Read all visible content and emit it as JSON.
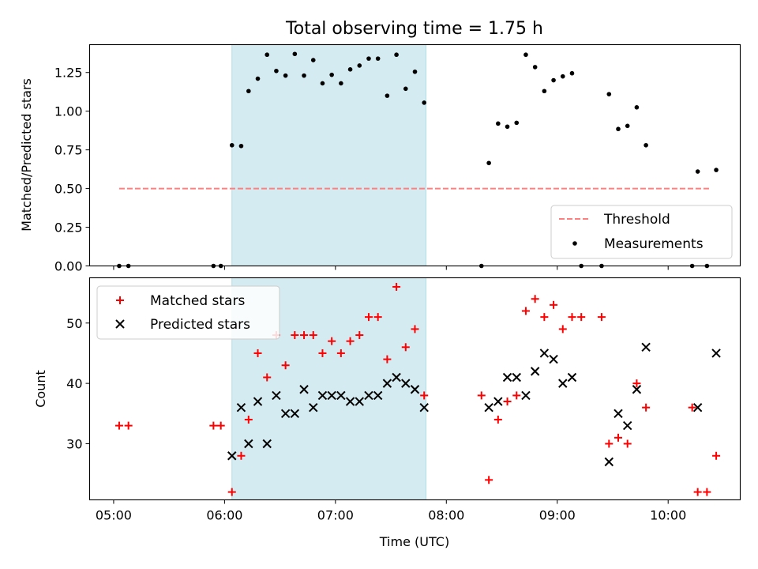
{
  "chart_data": [
    {
      "type": "scatter",
      "title": "Total observing time = 1.75 h",
      "xlabel": "",
      "ylabel": "Matched/Predicted stars",
      "ylim": [
        0,
        1.43
      ],
      "yticks": [
        0.0,
        0.25,
        0.5,
        0.75,
        1.0,
        1.25
      ],
      "ytick_labels": [
        "0.00",
        "0.25",
        "0.50",
        "0.75",
        "1.00",
        "1.25"
      ],
      "legend_position": "bottom-right",
      "shaded_interval": [
        "06:04",
        "07:49"
      ],
      "shade_color": "#d4ebf1",
      "threshold": {
        "name": "Threshold",
        "value": 0.5,
        "x_range": [
          "05:03",
          "10:23"
        ],
        "color": "#ff7f7f"
      },
      "series": [
        {
          "name": "Measurements",
          "marker": "dot",
          "color": "#000000",
          "points": [
            [
              "05:03",
              0.0
            ],
            [
              "05:08",
              0.0
            ],
            [
              "05:54",
              0.0
            ],
            [
              "05:58",
              0.0
            ],
            [
              "06:04",
              0.78
            ],
            [
              "06:09",
              0.775
            ],
            [
              "06:13",
              1.13
            ],
            [
              "06:18",
              1.21
            ],
            [
              "06:23",
              1.365
            ],
            [
              "06:28",
              1.26
            ],
            [
              "06:33",
              1.23
            ],
            [
              "06:38",
              1.37
            ],
            [
              "06:43",
              1.23
            ],
            [
              "06:48",
              1.33
            ],
            [
              "06:53",
              1.18
            ],
            [
              "06:58",
              1.235
            ],
            [
              "07:03",
              1.18
            ],
            [
              "07:08",
              1.27
            ],
            [
              "07:13",
              1.295
            ],
            [
              "07:18",
              1.34
            ],
            [
              "07:23",
              1.34
            ],
            [
              "07:28",
              1.1
            ],
            [
              "07:33",
              1.365
            ],
            [
              "07:38",
              1.145
            ],
            [
              "07:43",
              1.255
            ],
            [
              "07:48",
              1.055
            ],
            [
              "08:19",
              0.0
            ],
            [
              "08:23",
              0.665
            ],
            [
              "08:28",
              0.92
            ],
            [
              "08:33",
              0.9
            ],
            [
              "08:38",
              0.925
            ],
            [
              "08:43",
              1.365
            ],
            [
              "08:48",
              1.285
            ],
            [
              "08:53",
              1.13
            ],
            [
              "08:58",
              1.2
            ],
            [
              "09:03",
              1.225
            ],
            [
              "09:08",
              1.245
            ],
            [
              "09:13",
              0.0
            ],
            [
              "09:24",
              0.0
            ],
            [
              "09:28",
              1.11
            ],
            [
              "09:33",
              0.885
            ],
            [
              "09:38",
              0.905
            ],
            [
              "09:43",
              1.025
            ],
            [
              "09:48",
              0.78
            ],
            [
              "10:13",
              0.0
            ],
            [
              "10:16",
              0.61
            ],
            [
              "10:21",
              0.0
            ],
            [
              "10:26",
              0.62
            ]
          ]
        }
      ]
    },
    {
      "type": "scatter",
      "title": "",
      "xlabel": "Time (UTC)",
      "ylabel": "Count",
      "ylim": [
        20.7,
        57.5
      ],
      "yticks": [
        30,
        40,
        50
      ],
      "ytick_labels": [
        "30",
        "40",
        "50"
      ],
      "xlim": [
        "04:47",
        "10:39"
      ],
      "xticks": [
        "05:00",
        "06:00",
        "07:00",
        "08:00",
        "09:00",
        "10:00"
      ],
      "xtick_labels": [
        "05:00",
        "06:00",
        "07:00",
        "08:00",
        "09:00",
        "10:00"
      ],
      "legend_position": "top-left",
      "shaded_interval": [
        "06:04",
        "07:49"
      ],
      "series": [
        {
          "name": "Matched stars",
          "marker": "plus",
          "color": "#ff0000",
          "points": [
            [
              "05:03",
              33
            ],
            [
              "05:08",
              33
            ],
            [
              "05:54",
              33
            ],
            [
              "05:58",
              33
            ],
            [
              "06:04",
              22
            ],
            [
              "06:09",
              28
            ],
            [
              "06:13",
              34
            ],
            [
              "06:18",
              45
            ],
            [
              "06:23",
              41
            ],
            [
              "06:28",
              48
            ],
            [
              "06:33",
              43
            ],
            [
              "06:38",
              48
            ],
            [
              "06:43",
              48
            ],
            [
              "06:48",
              48
            ],
            [
              "06:53",
              45
            ],
            [
              "06:58",
              47
            ],
            [
              "07:03",
              45
            ],
            [
              "07:08",
              47
            ],
            [
              "07:13",
              48
            ],
            [
              "07:18",
              51
            ],
            [
              "07:23",
              51
            ],
            [
              "07:28",
              44
            ],
            [
              "07:33",
              56
            ],
            [
              "07:38",
              46
            ],
            [
              "07:43",
              49
            ],
            [
              "07:48",
              38
            ],
            [
              "08:19",
              38
            ],
            [
              "08:23",
              24
            ],
            [
              "08:28",
              34
            ],
            [
              "08:33",
              37
            ],
            [
              "08:38",
              38
            ],
            [
              "08:43",
              52
            ],
            [
              "08:48",
              54
            ],
            [
              "08:53",
              51
            ],
            [
              "08:58",
              53
            ],
            [
              "09:03",
              49
            ],
            [
              "09:08",
              51
            ],
            [
              "09:13",
              51
            ],
            [
              "09:24",
              51
            ],
            [
              "09:28",
              30
            ],
            [
              "09:33",
              31
            ],
            [
              "09:38",
              30
            ],
            [
              "09:43",
              40
            ],
            [
              "09:48",
              36
            ],
            [
              "10:13",
              36
            ],
            [
              "10:16",
              22
            ],
            [
              "10:21",
              22
            ],
            [
              "10:26",
              28
            ]
          ]
        },
        {
          "name": "Predicted stars",
          "marker": "x",
          "color": "#000000",
          "points": [
            [
              "06:04",
              28
            ],
            [
              "06:09",
              36
            ],
            [
              "06:13",
              30
            ],
            [
              "06:18",
              37
            ],
            [
              "06:23",
              30
            ],
            [
              "06:28",
              38
            ],
            [
              "06:33",
              35
            ],
            [
              "06:38",
              35
            ],
            [
              "06:43",
              39
            ],
            [
              "06:48",
              36
            ],
            [
              "06:53",
              38
            ],
            [
              "06:58",
              38
            ],
            [
              "07:03",
              38
            ],
            [
              "07:08",
              37
            ],
            [
              "07:13",
              37
            ],
            [
              "07:18",
              38
            ],
            [
              "07:23",
              38
            ],
            [
              "07:28",
              40
            ],
            [
              "07:33",
              41
            ],
            [
              "07:38",
              40
            ],
            [
              "07:43",
              39
            ],
            [
              "07:48",
              36
            ],
            [
              "08:23",
              36
            ],
            [
              "08:28",
              37
            ],
            [
              "08:33",
              41
            ],
            [
              "08:38",
              41
            ],
            [
              "08:43",
              38
            ],
            [
              "08:48",
              42
            ],
            [
              "08:53",
              45
            ],
            [
              "08:58",
              44
            ],
            [
              "09:03",
              40
            ],
            [
              "09:08",
              41
            ],
            [
              "09:28",
              27
            ],
            [
              "09:33",
              35
            ],
            [
              "09:38",
              33
            ],
            [
              "09:43",
              39
            ],
            [
              "09:48",
              46
            ],
            [
              "10:16",
              36
            ],
            [
              "10:26",
              45
            ]
          ]
        }
      ]
    }
  ]
}
